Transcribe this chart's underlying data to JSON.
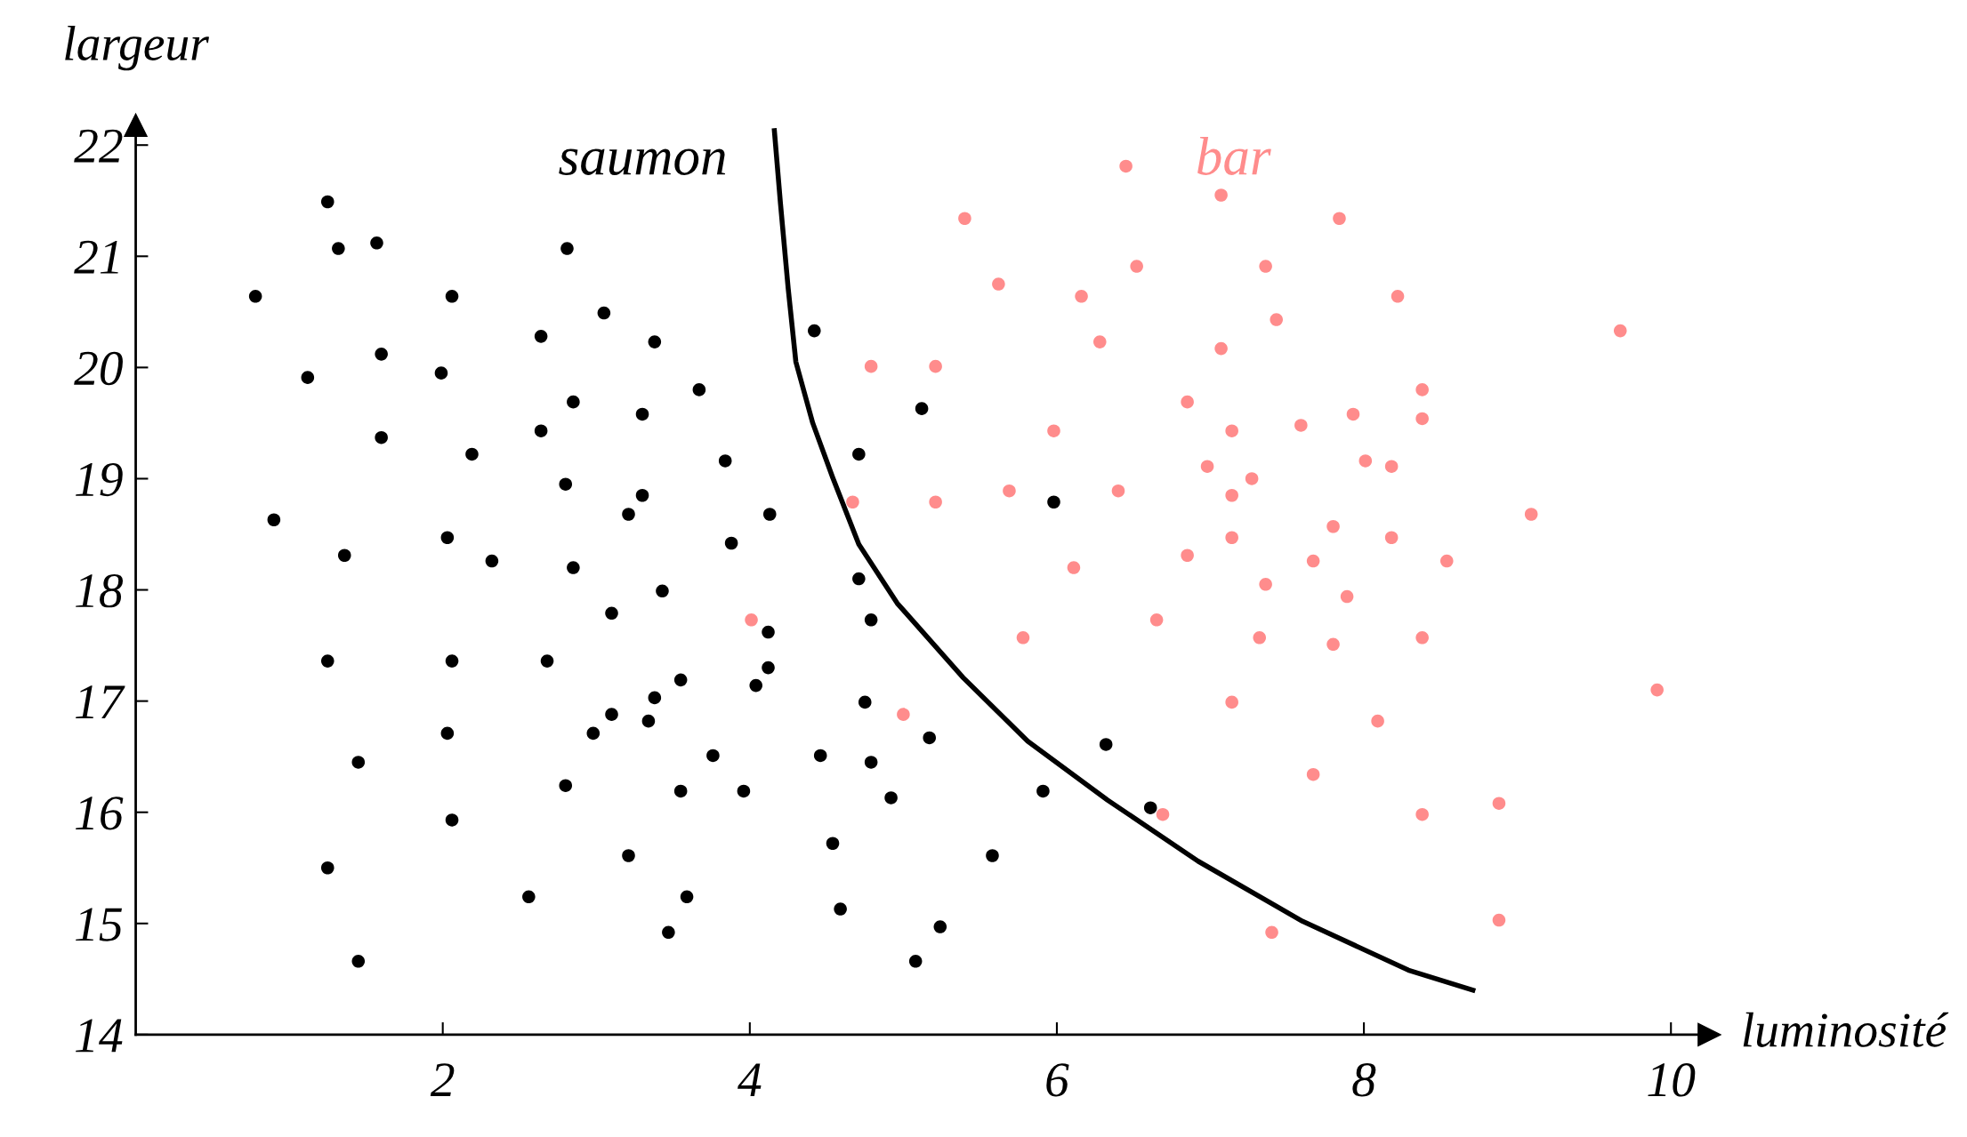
{
  "chart_data": {
    "type": "scatter",
    "xlabel": "luminosité",
    "ylabel": "largeur",
    "xlim": [
      0,
      10.25
    ],
    "ylim": [
      14,
      22.18
    ],
    "xticks": [
      2,
      4,
      6,
      8,
      10
    ],
    "yticks": [
      14,
      15,
      16,
      17,
      18,
      19,
      20,
      21,
      22
    ],
    "grid": false,
    "legend": false,
    "marker": "circle",
    "series": [
      {
        "name": "saumon",
        "color": "#000000",
        "x": [
          1.25,
          1.32,
          1.57,
          0.78,
          2.06,
          2.81,
          3.05,
          1.6,
          1.12,
          1.99,
          2.64,
          3.38,
          3.67,
          4.42,
          1.6,
          2.19,
          2.64,
          2.85,
          3.3,
          3.84,
          2.8,
          3.3,
          3.21,
          0.9,
          4.13,
          1.36,
          2.03,
          2.32,
          2.85,
          3.88,
          3.43,
          3.1,
          4.12,
          4.12,
          4.04,
          1.25,
          2.06,
          2.68,
          3.55,
          3.38,
          3.1,
          2.98,
          3.34,
          2.03,
          1.45,
          3.76,
          2.8,
          3.55,
          3.96,
          2.06,
          3.21,
          1.25,
          2.56,
          3.59,
          3.47,
          1.45,
          4.71,
          5.12,
          4.71,
          4.79,
          4.75,
          4.46,
          4.79,
          4.92,
          5.17,
          4.54,
          4.59,
          5.24,
          5.08,
          5.58,
          5.91,
          5.98,
          6.32,
          6.61
        ],
        "values": [
          21.49,
          21.07,
          21.12,
          20.64,
          20.64,
          21.07,
          20.49,
          20.12,
          19.91,
          19.95,
          20.28,
          20.23,
          19.8,
          20.33,
          19.37,
          19.22,
          19.43,
          19.69,
          19.58,
          19.16,
          18.95,
          18.85,
          18.68,
          18.63,
          18.68,
          18.31,
          18.47,
          18.26,
          18.2,
          18.42,
          17.99,
          17.79,
          17.62,
          17.3,
          17.14,
          17.36,
          17.36,
          17.36,
          17.19,
          17.03,
          16.88,
          16.71,
          16.82,
          16.71,
          16.45,
          16.51,
          16.24,
          16.19,
          16.19,
          15.93,
          15.61,
          15.5,
          15.24,
          15.24,
          14.92,
          14.66,
          19.22,
          19.63,
          18.1,
          17.73,
          16.99,
          16.51,
          16.45,
          16.13,
          16.67,
          15.72,
          15.13,
          14.97,
          14.66,
          15.61,
          16.19,
          18.79,
          16.61,
          16.04
        ]
      },
      {
        "name": "bar",
        "color": "#ff8c8c",
        "x": [
          6.45,
          5.4,
          7.07,
          7.84,
          5.62,
          6.16,
          6.52,
          7.36,
          7.43,
          8.22,
          6.28,
          7.07,
          9.67,
          4.79,
          5.21,
          8.38,
          6.85,
          7.93,
          8.38,
          5.98,
          7.14,
          7.59,
          8.01,
          8.18,
          6.98,
          7.27,
          5.69,
          6.4,
          7.14,
          4.67,
          5.21,
          9.09,
          7.8,
          7.14,
          8.18,
          6.85,
          7.67,
          8.54,
          6.11,
          7.36,
          7.89,
          4.01,
          6.65,
          5.78,
          7.32,
          7.8,
          8.38,
          7.14,
          9.91,
          5.0,
          8.09,
          7.67,
          6.69,
          8.38,
          8.88,
          8.88,
          7.4
        ],
        "values": [
          21.81,
          21.34,
          21.55,
          21.34,
          20.75,
          20.64,
          20.91,
          20.91,
          20.43,
          20.64,
          20.23,
          20.17,
          20.33,
          20.01,
          20.01,
          19.8,
          19.69,
          19.58,
          19.54,
          19.43,
          19.43,
          19.48,
          19.16,
          19.11,
          19.11,
          19.0,
          18.89,
          18.89,
          18.85,
          18.79,
          18.79,
          18.68,
          18.57,
          18.47,
          18.47,
          18.31,
          18.26,
          18.26,
          18.2,
          18.05,
          17.94,
          17.73,
          17.73,
          17.57,
          17.57,
          17.51,
          17.57,
          16.99,
          17.1,
          16.88,
          16.82,
          16.34,
          15.98,
          15.98,
          16.08,
          15.03,
          14.92
        ]
      },
      {
        "type": "line",
        "color": "#000000",
        "marker": "none",
        "x": [
          4.16,
          4.2,
          4.25,
          4.3,
          4.41,
          4.54,
          4.71,
          4.96,
          5.39,
          5.81,
          6.33,
          6.92,
          7.6,
          8.29,
          8.71
        ],
        "values": [
          22.13,
          21.47,
          20.71,
          20.05,
          19.5,
          19.01,
          18.41,
          17.88,
          17.21,
          16.64,
          16.11,
          15.56,
          15.02,
          14.58,
          14.4
        ]
      }
    ]
  }
}
